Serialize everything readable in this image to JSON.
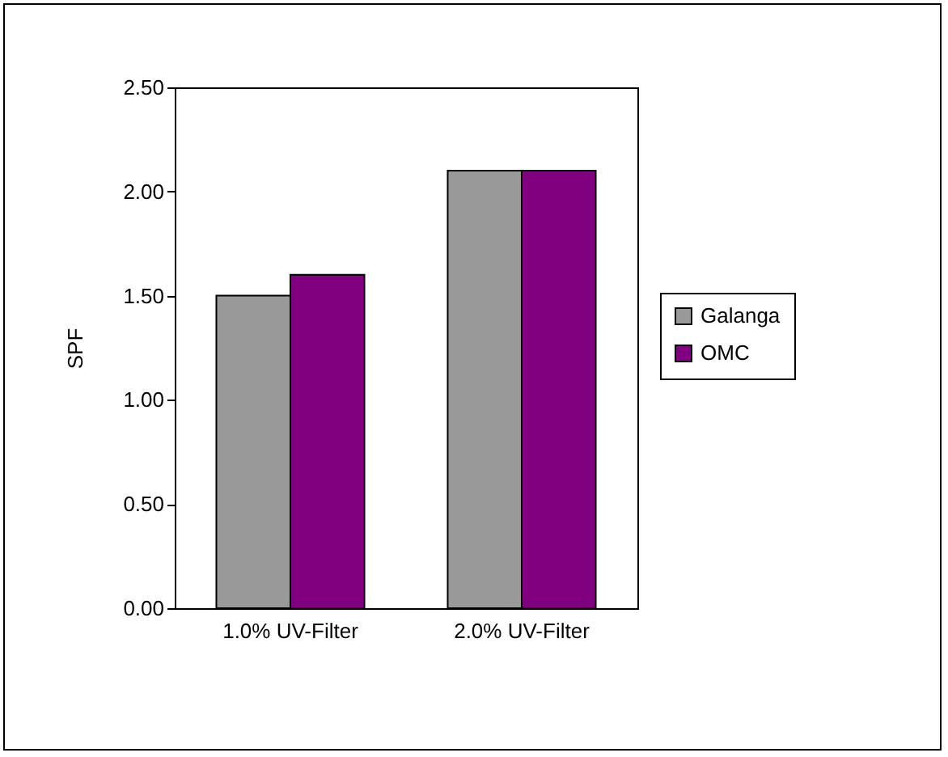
{
  "chart_data": {
    "type": "bar",
    "ylabel": "SPF",
    "categories": [
      "1.0% UV-Filter",
      "2.0% UV-Filter"
    ],
    "series": [
      {
        "name": "Galanga",
        "color": "#999999",
        "values": [
          1.5,
          2.1
        ]
      },
      {
        "name": "OMC",
        "color": "#800080",
        "values": [
          1.6,
          2.1
        ]
      }
    ],
    "ylim": [
      0,
      2.5
    ],
    "yticks": [
      {
        "value": 0,
        "label": "0.00"
      },
      {
        "value": 0.5,
        "label": "0.50"
      },
      {
        "value": 1,
        "label": "1.00"
      },
      {
        "value": 1.5,
        "label": "1.50"
      },
      {
        "value": 2,
        "label": "2.00"
      },
      {
        "value": 2.5,
        "label": "2.50"
      }
    ],
    "grid": false,
    "legend": "right"
  }
}
